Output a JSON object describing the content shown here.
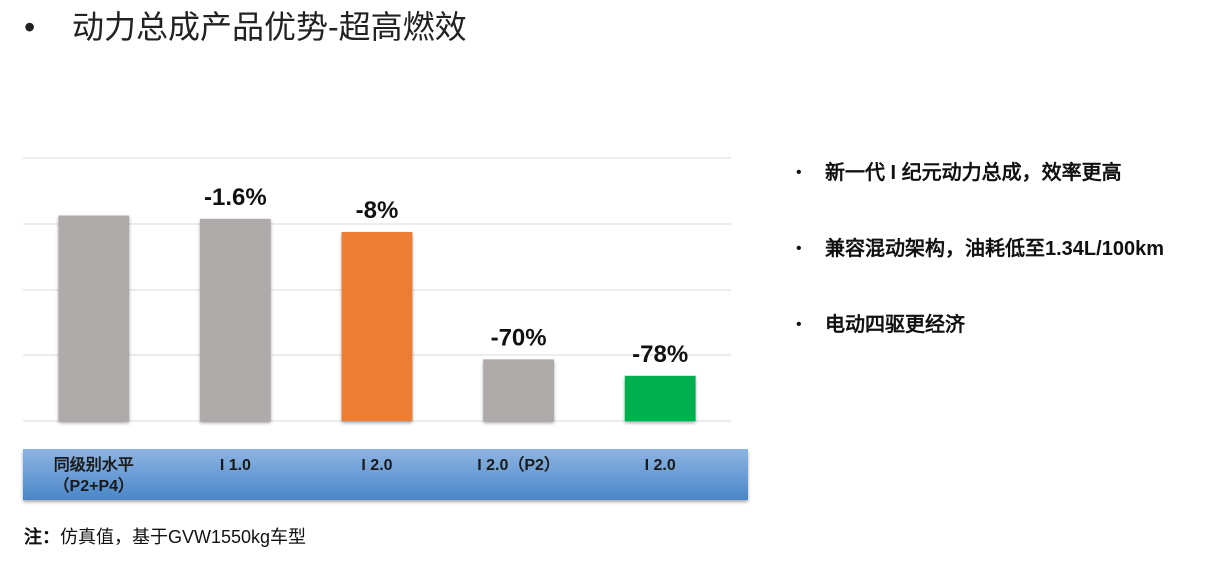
{
  "title": "动力总成产品优势-超高燃效",
  "bullets": [
    "新一代 I 纪元动力总成，效率更高",
    "兼容混动架构，油耗低至1.34L/100km",
    "电动四驱更经济"
  ],
  "note": {
    "label": "注：",
    "text": "仿真值，基于GVW1550kg车型"
  },
  "chart_data": {
    "type": "bar",
    "categories": [
      "同级别水平\n（P2+P4）",
      "I 1.0",
      "I 2.0",
      "I 2.0（P2）",
      "I 2.0"
    ],
    "values": [
      0,
      -1.6,
      -8,
      -70,
      -78
    ],
    "value_labels": [
      null,
      "-1.6%",
      "-8%",
      "-70%",
      "-78%"
    ],
    "colors": [
      "#aeaaaa",
      "#aeaaaa",
      "#ed7d31",
      "#aeaaaa",
      "#00b050"
    ],
    "ylim": [
      -100,
      28
    ]
  }
}
